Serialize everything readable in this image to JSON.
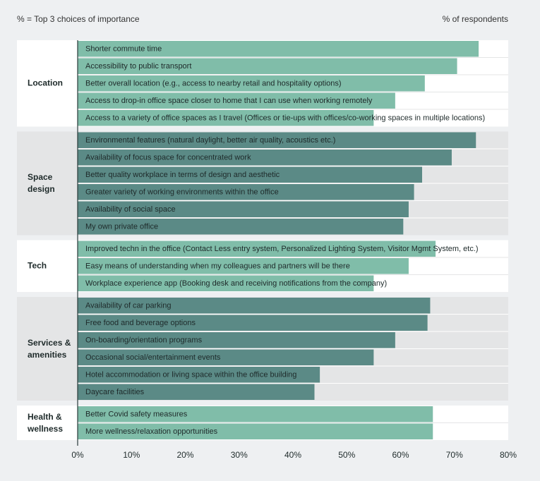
{
  "chart_data": {
    "type": "grouped-hbar",
    "annotation": "% = Top 3 choices of importance",
    "x_axis_label": "% of respondents",
    "xlim": [
      0,
      80
    ],
    "xticks": [
      {
        "value": 0,
        "label": "0%"
      },
      {
        "value": 10,
        "label": "10%"
      },
      {
        "value": 20,
        "label": "20%"
      },
      {
        "value": 30,
        "label": "30%"
      },
      {
        "value": 40,
        "label": "40%"
      },
      {
        "value": 50,
        "label": "50%"
      },
      {
        "value": 60,
        "label": "60%"
      },
      {
        "value": 70,
        "label": "70%"
      },
      {
        "value": 80,
        "label": "80%"
      }
    ],
    "groups": [
      {
        "name": "Location",
        "color": "#80bda9",
        "panel_color": "#ffffff",
        "categories": [
          "Shorter commute time",
          "Accessibility to public transport",
          "Better overall location (e.g., access to nearby retail and hospitality options)",
          "Access to drop-in office space closer to home that I can use when working remotely",
          "Access to a variety of office spaces as I travel (Offices or tie-ups with offices/co-working spaces in multiple locations)"
        ],
        "values": [
          74.5,
          70.5,
          64.5,
          59,
          55
        ]
      },
      {
        "name": "Space design",
        "color": "#5b8a86",
        "panel_color": "#e4e5e6",
        "categories": [
          "Environmental features (natural daylight, better air quality, acoustics etc.)",
          "Availability of focus space for concentrated work",
          "Better quality workplace in terms of design and aesthetic",
          "Greater variety of working environments within the office",
          "Availability of social space",
          "My own private office"
        ],
        "values": [
          74,
          69.5,
          64,
          62.5,
          61.5,
          60.5
        ]
      },
      {
        "name": "Tech",
        "color": "#80bda9",
        "panel_color": "#ffffff",
        "categories": [
          "Improved techn in the office (Contact Less entry system, Personalized Lighting System, Visitor Mgmt System, etc.)",
          "Easy means of understanding when my colleagues and partners will be there",
          "Workplace experience app (Booking desk and receiving notifications from the company)"
        ],
        "values": [
          66.5,
          61.5,
          55
        ]
      },
      {
        "name": "Services & amenities",
        "color": "#5b8a86",
        "panel_color": "#e4e5e6",
        "categories": [
          "Availability of car parking",
          "Free food and beverage options",
          "On-boarding/orientation programs",
          "Occasional social/entertainment events",
          "Hotel accommodation or living space within the office building",
          "Daycare facilities"
        ],
        "values": [
          65.5,
          65,
          59,
          55,
          45,
          44
        ]
      },
      {
        "name": "Health & wellness",
        "color": "#80bda9",
        "panel_color": "#ffffff",
        "categories": [
          "Better Covid safety measures",
          "More wellness/relaxation opportunities"
        ],
        "values": [
          66,
          66
        ]
      }
    ]
  }
}
